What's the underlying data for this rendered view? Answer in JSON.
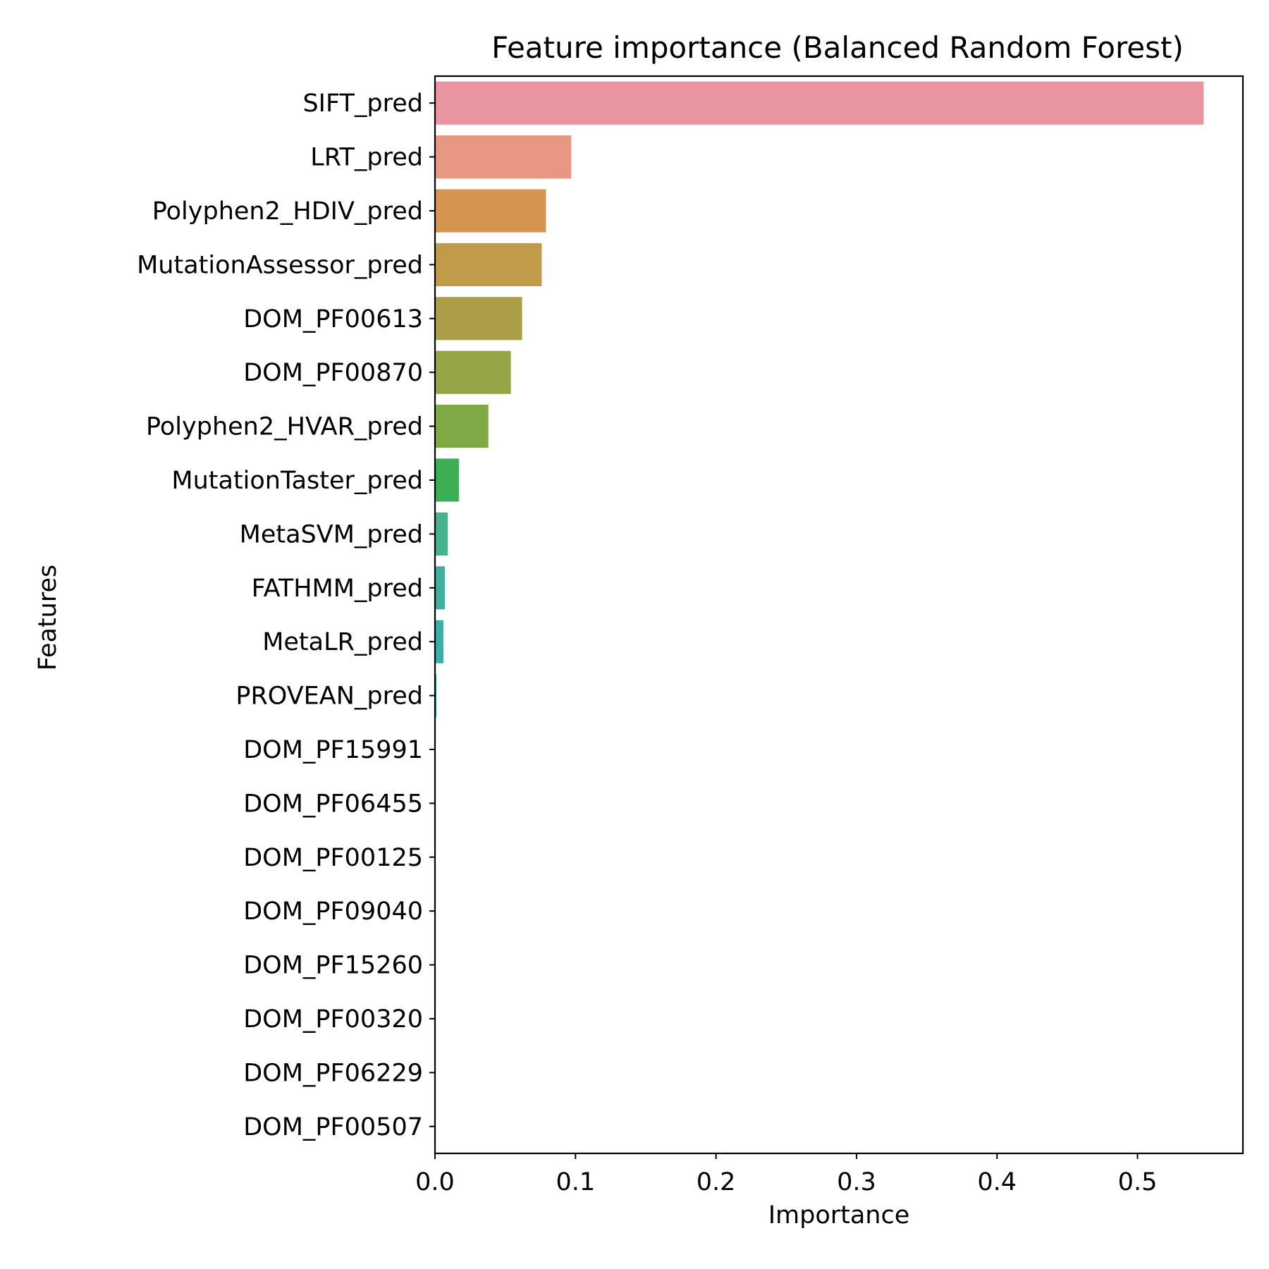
{
  "chart_data": {
    "type": "bar",
    "orientation": "horizontal",
    "title": "Feature importance (Balanced Random Forest)",
    "xlabel": "Importance",
    "ylabel": "Features",
    "xlim": [
      0,
      0.575
    ],
    "xticks": [
      "0.0",
      "0.1",
      "0.2",
      "0.3",
      "0.4",
      "0.5"
    ],
    "grid": false,
    "categories": [
      "SIFT_pred",
      "LRT_pred",
      "Polyphen2_HDIV_pred",
      "MutationAssessor_pred",
      "DOM_PF00613",
      "DOM_PF00870",
      "Polyphen2_HVAR_pred",
      "MutationTaster_pred",
      "MetaSVM_pred",
      "FATHMM_pred",
      "MetaLR_pred",
      "PROVEAN_pred",
      "DOM_PF15991",
      "DOM_PF06455",
      "DOM_PF00125",
      "DOM_PF09040",
      "DOM_PF15260",
      "DOM_PF00320",
      "DOM_PF06229",
      "DOM_PF00507"
    ],
    "values": [
      0.547,
      0.097,
      0.079,
      0.076,
      0.062,
      0.054,
      0.038,
      0.017,
      0.009,
      0.007,
      0.006,
      0.001,
      0,
      0,
      0,
      0,
      0,
      0,
      0,
      0
    ],
    "colors": [
      "#e994a1",
      "#e79782",
      "#d59450",
      "#c09b4a",
      "#aa9f48",
      "#98a448",
      "#7ea945",
      "#3dae54",
      "#46b08f",
      "#42ae9e",
      "#3eadaa",
      "#3aabb8",
      "#3ca8c7",
      "#4aa3d6",
      "#6d9ae3",
      "#9d8ee8",
      "#c684e3",
      "#e07bd0",
      "#e886b5",
      "#e78fa6"
    ]
  }
}
